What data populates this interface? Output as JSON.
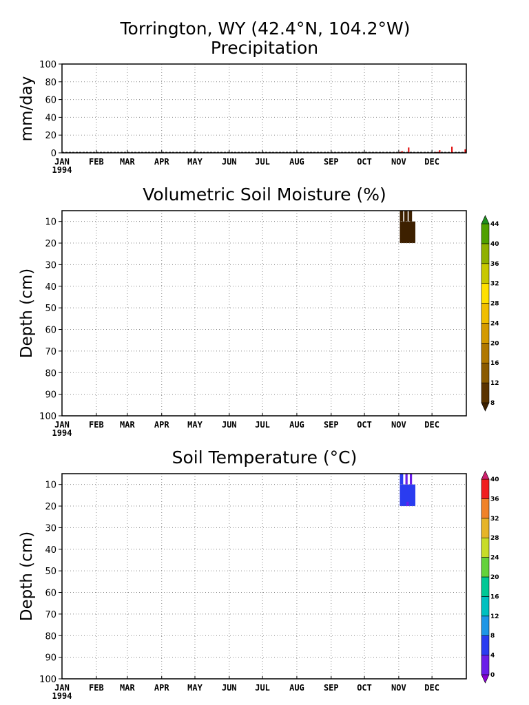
{
  "title": "Torrington, WY  (42.4°N, 104.2°W)",
  "year": "1994",
  "months": [
    "JAN",
    "FEB",
    "MAR",
    "APR",
    "MAY",
    "JUN",
    "JUL",
    "AUG",
    "SEP",
    "OCT",
    "NOV",
    "DEC"
  ],
  "chart_data": [
    {
      "type": "bar",
      "title": "Precipitation",
      "ylabel": "mm/day",
      "ylim": [
        0,
        100
      ],
      "yticks": [
        0,
        20,
        40,
        60,
        80,
        100
      ],
      "grid": true,
      "color": "#e00000",
      "days": [
        305,
        307,
        313,
        338,
        341,
        352,
        364
      ],
      "values": [
        1,
        2,
        6,
        1,
        3,
        7,
        4
      ]
    },
    {
      "type": "heatmap",
      "title": "Volumetric Soil Moisture (%)",
      "ylabel": "Depth (cm)",
      "ylim": [
        100,
        5
      ],
      "yticks": [
        10,
        20,
        30,
        40,
        50,
        60,
        70,
        80,
        90,
        100
      ],
      "grid": true,
      "colorbar": {
        "labels": [
          "8",
          "12",
          "16",
          "20",
          "24",
          "28",
          "32",
          "36",
          "40",
          "44"
        ],
        "colors": [
          "#3d2000",
          "#5a3300",
          "#8a5a00",
          "#b07800",
          "#d49a00",
          "#f0be00",
          "#ffe000",
          "#c8c800",
          "#90b000",
          "#50a000",
          "#1f8f1f"
        ]
      },
      "cells": [
        {
          "start_day": 305,
          "end_day": 319,
          "top_cm": 10,
          "bottom_cm": 20,
          "color": "#3d2000"
        },
        {
          "start_day": 305,
          "end_day": 308,
          "top_cm": 5,
          "bottom_cm": 10,
          "color": "#3d2000"
        },
        {
          "start_day": 309,
          "end_day": 312,
          "top_cm": 5,
          "bottom_cm": 10,
          "color": "#3d2000"
        },
        {
          "start_day": 313,
          "end_day": 316,
          "top_cm": 5,
          "bottom_cm": 10,
          "color": "#3d2000"
        }
      ]
    },
    {
      "type": "heatmap",
      "title": "Soil Temperature (°C)",
      "ylabel": "Depth (cm)",
      "ylim": [
        100,
        5
      ],
      "yticks": [
        10,
        20,
        30,
        40,
        50,
        60,
        70,
        80,
        90,
        100
      ],
      "grid": true,
      "colorbar": {
        "labels": [
          "0",
          "4",
          "8",
          "12",
          "16",
          "20",
          "24",
          "28",
          "32",
          "36",
          "40"
        ],
        "colors": [
          "#8a00d4",
          "#6a1ee8",
          "#2a3cf0",
          "#1e96e6",
          "#00c0c0",
          "#00c896",
          "#64d23c",
          "#c8dc28",
          "#e6b428",
          "#f08228",
          "#f01e1e",
          "#d0206e"
        ]
      },
      "cells": [
        {
          "start_day": 305,
          "end_day": 319,
          "top_cm": 10,
          "bottom_cm": 20,
          "color": "#2a3cf0"
        },
        {
          "start_day": 305,
          "end_day": 308,
          "top_cm": 5,
          "bottom_cm": 10,
          "color": "#2a3cf0"
        },
        {
          "start_day": 310,
          "end_day": 312,
          "top_cm": 5,
          "bottom_cm": 10,
          "color": "#6a1ee8"
        },
        {
          "start_day": 314,
          "end_day": 316,
          "top_cm": 5,
          "bottom_cm": 10,
          "color": "#6a1ee8"
        },
        {
          "start_day": 311,
          "end_day": 313,
          "top_cm": 18,
          "bottom_cm": 20,
          "color": "#6a1ee8"
        }
      ]
    }
  ]
}
